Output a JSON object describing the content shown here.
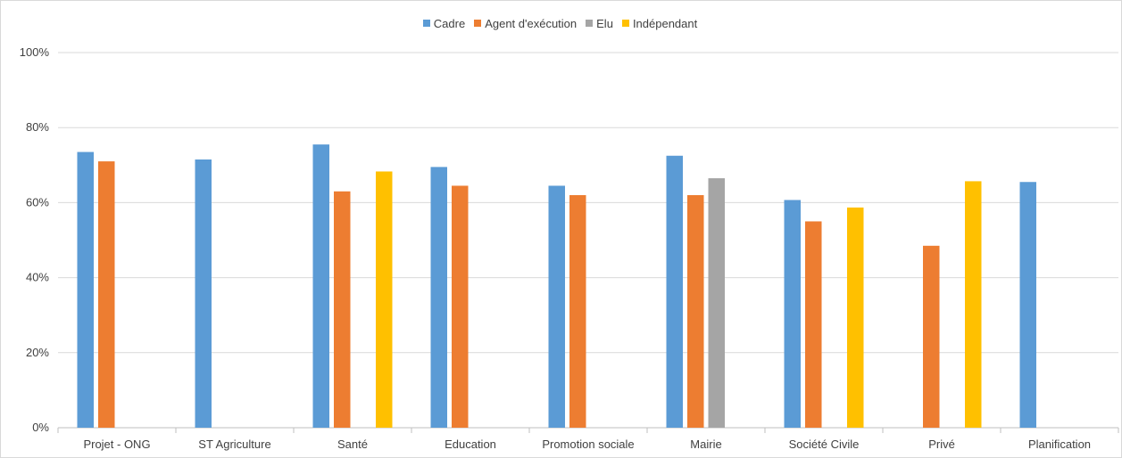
{
  "chart_data": {
    "type": "bar",
    "title": "",
    "xlabel": "",
    "ylabel": "",
    "ylim": [
      0,
      100
    ],
    "yticks": [
      "0%",
      "20%",
      "40%",
      "60%",
      "80%",
      "100%"
    ],
    "grid": true,
    "legend_position": "top-center",
    "categories": [
      "Projet - ONG",
      "ST Agriculture",
      "Santé",
      "Education",
      "Promotion sociale",
      "Mairie",
      "Société Civile",
      "Privé",
      "Planification"
    ],
    "series": [
      {
        "name": "Cadre",
        "color": "#5b9bd5",
        "values": [
          73.5,
          71.5,
          75.5,
          69.5,
          64.5,
          72.5,
          60.7,
          null,
          65.5
        ]
      },
      {
        "name": "Agent d'exécution",
        "color": "#ed7d31",
        "values": [
          71,
          null,
          63,
          64.5,
          62,
          62,
          55,
          48.5,
          null
        ]
      },
      {
        "name": "Elu",
        "color": "#a5a5a5",
        "values": [
          null,
          null,
          null,
          null,
          null,
          66.5,
          null,
          null,
          null
        ]
      },
      {
        "name": "Indépendant",
        "color": "#ffc000",
        "values": [
          null,
          null,
          68.3,
          null,
          null,
          null,
          58.7,
          65.7,
          null
        ]
      }
    ]
  }
}
